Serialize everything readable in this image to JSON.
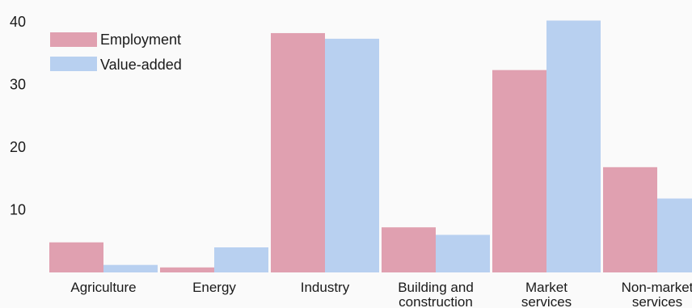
{
  "chart_data": {
    "type": "bar",
    "title": "",
    "xlabel": "",
    "ylabel": "",
    "ylim": [
      0,
      40
    ],
    "yticks": [
      10,
      20,
      30,
      40
    ],
    "grid": false,
    "legend_position": "top-left",
    "categories": [
      [
        "Agriculture"
      ],
      [
        "Energy"
      ],
      [
        "Industry"
      ],
      [
        "Building and",
        "construction"
      ],
      [
        "Market",
        "services"
      ],
      [
        "Non-market",
        "services"
      ]
    ],
    "series": [
      {
        "name": "Employment",
        "color": "#e0a0b0",
        "values": [
          4.8,
          0.8,
          38.2,
          7.2,
          32.3,
          16.8
        ]
      },
      {
        "name": "Value-added",
        "color": "#b8d0f0",
        "values": [
          1.2,
          4.0,
          37.3,
          6.0,
          40.2,
          11.8
        ]
      }
    ]
  }
}
